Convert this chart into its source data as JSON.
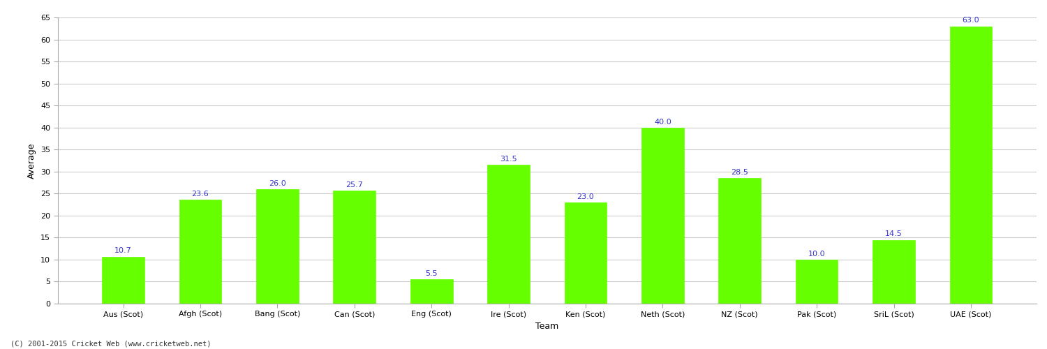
{
  "categories": [
    "Aus (Scot)",
    "Afgh (Scot)",
    "Bang (Scot)",
    "Can (Scot)",
    "Eng (Scot)",
    "Ire (Scot)",
    "Ken (Scot)",
    "Neth (Scot)",
    "NZ (Scot)",
    "Pak (Scot)",
    "SriL (Scot)",
    "UAE (Scot)"
  ],
  "values": [
    10.7,
    23.6,
    26.0,
    25.7,
    5.5,
    31.5,
    23.0,
    40.0,
    28.5,
    10.0,
    14.5,
    63.0
  ],
  "bar_color": "#66ff00",
  "bar_edge_color": "#66ff00",
  "label_color": "#3333cc",
  "xlabel": "Team",
  "ylabel": "Average",
  "ylim": [
    0,
    65
  ],
  "yticks": [
    0,
    5,
    10,
    15,
    20,
    25,
    30,
    35,
    40,
    45,
    50,
    55,
    60,
    65
  ],
  "label_fontsize": 8,
  "axis_label_fontsize": 9,
  "tick_fontsize": 8,
  "footer_text": "(C) 2001-2015 Cricket Web (www.cricketweb.net)",
  "footer_fontsize": 7.5,
  "background_color": "#ffffff",
  "grid_color": "#cccccc",
  "bar_width": 0.55
}
